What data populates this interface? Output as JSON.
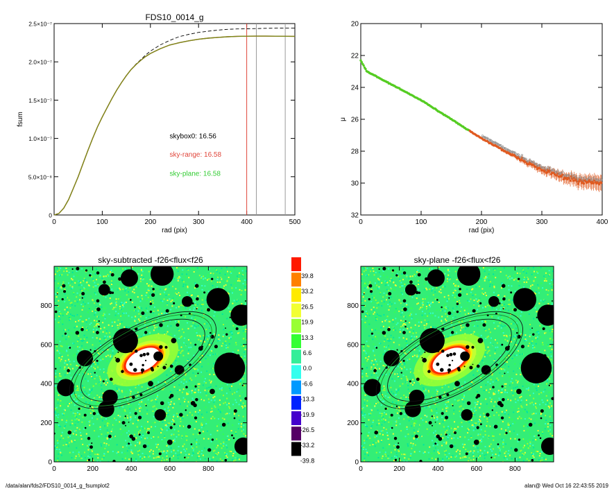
{
  "chart_data": [
    {
      "id": "fsum",
      "type": "line",
      "title": "FDS10_0014_g",
      "xlabel": "rad (pix)",
      "ylabel": "fsum",
      "xlim": [
        0,
        500
      ],
      "ylim": [
        0,
        2.5e-07
      ],
      "xticks": [
        0,
        100,
        200,
        300,
        400,
        500
      ],
      "yticks": [
        {
          "value": 0,
          "label": "0"
        },
        {
          "value": 5e-08,
          "label": "5.0×10⁻⁸"
        },
        {
          "value": 1e-07,
          "label": "1.0×10⁻⁷"
        },
        {
          "value": 1.5e-07,
          "label": "1.5×10⁻⁷"
        },
        {
          "value": 2e-07,
          "label": "2.0×10⁻⁷"
        },
        {
          "value": 2.5e-07,
          "label": "2.5×10⁻⁷"
        }
      ],
      "x": [
        0,
        10,
        20,
        30,
        40,
        50,
        60,
        70,
        80,
        90,
        100,
        110,
        120,
        130,
        140,
        150,
        160,
        170,
        180,
        190,
        200,
        220,
        240,
        260,
        280,
        300,
        320,
        340,
        360,
        380,
        400,
        420,
        440,
        460,
        480,
        500
      ],
      "series": [
        {
          "style": "dashed",
          "color": "#000000",
          "values": [
            0,
            2e-09,
            9e-09,
            2e-08,
            3.5e-08,
            5e-08,
            6.7e-08,
            8.4e-08,
            1e-07,
            1.15e-07,
            1.28e-07,
            1.4e-07,
            1.52e-07,
            1.63e-07,
            1.73e-07,
            1.82e-07,
            1.9e-07,
            1.97e-07,
            2.03e-07,
            2.09e-07,
            2.14e-07,
            2.22e-07,
            2.28e-07,
            2.33e-07,
            2.36e-07,
            2.385e-07,
            2.4e-07,
            2.415e-07,
            2.425e-07,
            2.43e-07,
            2.432e-07,
            2.435e-07,
            2.438e-07,
            2.44e-07,
            2.442e-07,
            2.442e-07
          ]
        },
        {
          "style": "solid",
          "color": "#d03a2a",
          "values": [
            0,
            2e-09,
            9e-09,
            2e-08,
            3.5e-08,
            5e-08,
            6.7e-08,
            8.4e-08,
            1e-07,
            1.15e-07,
            1.28e-07,
            1.4e-07,
            1.52e-07,
            1.63e-07,
            1.73e-07,
            1.82e-07,
            1.9e-07,
            1.965e-07,
            2.02e-07,
            2.07e-07,
            2.11e-07,
            2.17e-07,
            2.22e-07,
            2.25e-07,
            2.275e-07,
            2.295e-07,
            2.31e-07,
            2.32e-07,
            2.328e-07,
            2.333e-07,
            2.335e-07,
            2.336e-07,
            2.336e-07,
            2.335e-07,
            2.334e-07,
            2.333e-07
          ]
        },
        {
          "style": "solid",
          "color": "#7a8a1a",
          "values": [
            0,
            2e-09,
            9e-09,
            2e-08,
            3.5e-08,
            5e-08,
            6.7e-08,
            8.4e-08,
            1e-07,
            1.15e-07,
            1.28e-07,
            1.4e-07,
            1.52e-07,
            1.63e-07,
            1.73e-07,
            1.82e-07,
            1.9e-07,
            1.965e-07,
            2.02e-07,
            2.07e-07,
            2.11e-07,
            2.17e-07,
            2.22e-07,
            2.25e-07,
            2.275e-07,
            2.295e-07,
            2.31e-07,
            2.32e-07,
            2.328e-07,
            2.333e-07,
            2.335e-07,
            2.336e-07,
            2.336e-07,
            2.335e-07,
            2.334e-07,
            2.333e-07
          ]
        }
      ],
      "vlines": [
        {
          "x": 400,
          "color": "#e0453a"
        },
        {
          "x": 420,
          "color": "#999999"
        },
        {
          "x": 480,
          "color": "#999999"
        }
      ],
      "annotations": [
        {
          "text": "skybox0: 16.56",
          "color": "#000000",
          "x": 240,
          "y": 1e-07
        },
        {
          "text": "sky-range: 16.58",
          "color": "#e0453a",
          "x": 240,
          "y": 7.6e-08
        },
        {
          "text": "sky-plane: 16.58",
          "color": "#33cc33",
          "x": 240,
          "y": 5.1e-08
        }
      ]
    },
    {
      "id": "mu",
      "type": "scatter",
      "xlabel": "rad (pix)",
      "ylabel": "μ",
      "xlim": [
        0,
        400
      ],
      "ylim": [
        32,
        20
      ],
      "xticks": [
        0,
        100,
        200,
        300,
        400
      ],
      "yticks": [
        20,
        22,
        24,
        26,
        28,
        30,
        32
      ],
      "profile": {
        "x": [
          0,
          10,
          30,
          50,
          100,
          150,
          200,
          250,
          300,
          350,
          400
        ],
        "y": [
          22.3,
          23.0,
          23.4,
          23.8,
          24.8,
          26.0,
          27.2,
          28.2,
          29.2,
          29.8,
          30.0
        ]
      },
      "point_colors": {
        "sky_plane": "#55cc22",
        "sky_range": "#e05a20",
        "skybox0": "#888888"
      },
      "color_switch_x": 180
    },
    {
      "id": "img-left",
      "type": "heatmap",
      "title": "sky-subtracted -f26<flux<f26",
      "xlim": [
        0,
        1000
      ],
      "ylim": [
        0,
        1000
      ],
      "xticks": [
        0,
        200,
        400,
        600,
        800
      ],
      "yticks": [
        0,
        200,
        400,
        600,
        800
      ]
    },
    {
      "id": "img-right",
      "type": "heatmap",
      "title": "sky-plane -f26<flux<f26",
      "xlim": [
        0,
        1000
      ],
      "ylim": [
        0,
        1000
      ],
      "xticks": [
        0,
        200,
        400,
        600,
        800
      ],
      "yticks": [
        0,
        200,
        400,
        600,
        800
      ]
    },
    {
      "id": "colorbar",
      "type": "colorbar",
      "levels": [
        {
          "label": "39.8",
          "color": "#ff1a00"
        },
        {
          "label": "33.2",
          "color": "#ff8000"
        },
        {
          "label": "26.5",
          "color": "#ffea00"
        },
        {
          "label": "19.9",
          "color": "#f2ff33"
        },
        {
          "label": "13.3",
          "color": "#99ff33"
        },
        {
          "label": "6.6",
          "color": "#33ff33"
        },
        {
          "label": "0.0",
          "color": "#33ee99"
        },
        {
          "label": "-6.6",
          "color": "#33ffee"
        },
        {
          "label": "-13.3",
          "color": "#0099ff"
        },
        {
          "label": "-19.9",
          "color": "#0022ff"
        },
        {
          "label": "-26.5",
          "color": "#4400cc"
        },
        {
          "label": "-33.2",
          "color": "#550066"
        },
        {
          "label": "-39.8",
          "color": "#000000"
        }
      ]
    }
  ],
  "image_colors": {
    "background": "#33ee77",
    "speckle": [
      "#33ff55",
      "#99ff33",
      "#33ffcc",
      "#00e5a0",
      "#f2ff33"
    ],
    "core_ring": [
      "#ff2200",
      "#ff8800",
      "#ffee00"
    ],
    "mask": "#000000",
    "core": "#ffffff",
    "ellipse_outer": "#111111",
    "ellipse_inner": "#1d8a2a"
  },
  "footer": {
    "left": "/data/alan/fds2/FDS10_0014_g_fsumplot2",
    "right": "alan@  Wed Oct 16 22:43:55 2019"
  }
}
